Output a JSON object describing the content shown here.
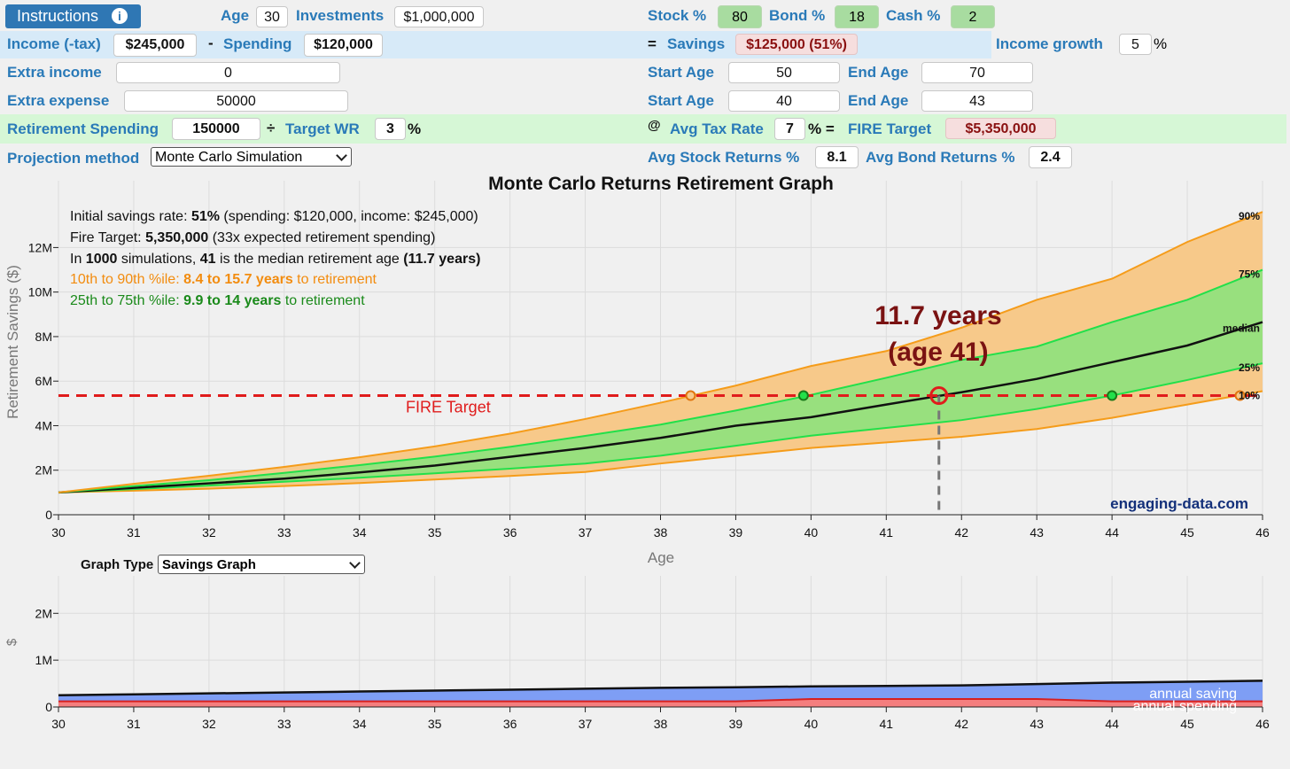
{
  "controls": {
    "instructions_label": "Instructions",
    "age_label": "Age",
    "age_value": "30",
    "investments_label": "Investments",
    "investments_value": "$1,000,000",
    "stock_label": "Stock %",
    "stock_value": "80",
    "bond_label": "Bond %",
    "bond_value": "18",
    "cash_label": "Cash %",
    "cash_value": "2",
    "income_label": "Income (-tax)",
    "income_value": "$245,000",
    "minus_sign": "-",
    "spending_label": "Spending",
    "spending_value": "$120,000",
    "equals_sign": "=",
    "savings_label": "Savings",
    "savings_value": "$125,000 (51%)",
    "income_growth_label": "Income growth",
    "income_growth_value": "5",
    "income_growth_unit": "%",
    "extra_income_label": "Extra income",
    "extra_income_value": "0",
    "extra_income_start_label": "Start Age",
    "extra_income_start_value": "50",
    "extra_income_end_label": "End Age",
    "extra_income_end_value": "70",
    "extra_expense_label": "Extra expense",
    "extra_expense_value": "50000",
    "extra_expense_start_label": "Start Age",
    "extra_expense_start_value": "40",
    "extra_expense_end_label": "End Age",
    "extra_expense_end_value": "43",
    "retirement_spending_label": "Retirement Spending",
    "retirement_spending_value": "150000",
    "divide_sign": "÷",
    "target_wr_label": "Target WR",
    "target_wr_value": "3",
    "target_wr_unit": "%",
    "at_sign": "@",
    "tax_rate_label": "Avg Tax Rate",
    "tax_rate_value": "7",
    "tax_rate_unit": "% =",
    "fire_target_label": "FIRE Target",
    "fire_target_value": "$5,350,000",
    "projection_label": "Projection method",
    "projection_value": "Monte Carlo Simulation",
    "avg_stock_label": "Avg Stock Returns %",
    "avg_stock_value": "8.1",
    "avg_bond_label": "Avg Bond Returns %",
    "avg_bond_value": "2.4"
  },
  "info": {
    "line1_a": "Initial savings rate: ",
    "line1_b": "51%",
    "line1_c": " (spending: $120,000, income: $245,000)",
    "line2_a": "Fire Target: ",
    "line2_b": "5,350,000",
    "line2_c": " (33x expected retirement spending)",
    "line3_a": "In ",
    "line3_b": "1000",
    "line3_c": " simulations, ",
    "line3_d": "41",
    "line3_e": " is the median retirement age ",
    "line3_f": "(11.7 years)",
    "line4_a": "10th to 90th %ile: ",
    "line4_b": "8.4 to 15.7 years",
    "line4_c": " to retirement",
    "line5_a": "25th to 75th %ile: ",
    "line5_b": "9.9 to 14 years",
    "line5_c": " to retirement"
  },
  "annotation": {
    "line1": "11.7 years",
    "line2": "(age 41)"
  },
  "watermark": "engaging-data.com",
  "graph_type_label": "Graph Type",
  "graph_type_value": "Savings Graph",
  "colors": {
    "outer_band": "#f7c98a",
    "outer_line": "#f59c1a",
    "inner_band": "#98e07e",
    "inner_line": "#22e04a",
    "median": "#111111",
    "fire": "#e01c1c",
    "saving": "#7e9ef5",
    "spending": "#f47e7e"
  },
  "chart_data": [
    {
      "type": "area",
      "title": "Monte Carlo Returns Retirement Graph",
      "xlabel": "Age",
      "ylabel": "Retirement Savings ($)",
      "x": [
        30,
        31,
        32,
        33,
        34,
        35,
        36,
        37,
        38,
        39,
        40,
        41,
        42,
        43,
        44,
        45,
        46
      ],
      "xlim": [
        30,
        46
      ],
      "ylim": [
        0,
        15000000
      ],
      "yticks": [
        0,
        2000000,
        4000000,
        6000000,
        8000000,
        10000000,
        12000000
      ],
      "ytick_labels": [
        "0",
        "2M",
        "4M",
        "6M",
        "8M",
        "10M",
        "12M"
      ],
      "series": [
        {
          "name": "10%",
          "values": [
            1000000,
            1080000,
            1170000,
            1290000,
            1420000,
            1580000,
            1740000,
            1920000,
            2300000,
            2650000,
            3000000,
            3250000,
            3500000,
            3850000,
            4350000,
            4950000,
            5550000
          ]
        },
        {
          "name": "25%",
          "values": [
            1000000,
            1150000,
            1310000,
            1480000,
            1660000,
            1860000,
            2070000,
            2300000,
            2650000,
            3100000,
            3550000,
            3900000,
            4250000,
            4750000,
            5350000,
            6050000,
            6800000
          ]
        },
        {
          "name": "median",
          "values": [
            1000000,
            1210000,
            1410000,
            1620000,
            1900000,
            2210000,
            2600000,
            3000000,
            3450000,
            4000000,
            4380000,
            4950000,
            5500000,
            6100000,
            6850000,
            7600000,
            8650000
          ]
        },
        {
          "name": "75%",
          "values": [
            1000000,
            1290000,
            1550000,
            1880000,
            2230000,
            2610000,
            3050000,
            3540000,
            4050000,
            4680000,
            5380000,
            6150000,
            6950000,
            7550000,
            8650000,
            9650000,
            11000000
          ]
        },
        {
          "name": "90%",
          "values": [
            1000000,
            1390000,
            1750000,
            2150000,
            2580000,
            3070000,
            3640000,
            4300000,
            5030000,
            5800000,
            6680000,
            7350000,
            8400000,
            9650000,
            10600000,
            12250000,
            13600000
          ]
        }
      ],
      "percentile_labels": [
        "90%",
        "75%",
        "median",
        "25%",
        "10%"
      ],
      "fire_target": 5350000,
      "fire_label": "FIRE Target",
      "retirement_markers": [
        {
          "label": "10th",
          "age": 38.4
        },
        {
          "label": "25th",
          "age": 39.9
        },
        {
          "label": "median",
          "age": 41.7
        },
        {
          "label": "75th",
          "age": 44.0
        },
        {
          "label": "90th",
          "age": 45.7
        }
      ],
      "legend": "none"
    },
    {
      "type": "area",
      "title": "Savings Graph",
      "xlabel": "",
      "ylabel": "$",
      "x": [
        30,
        31,
        32,
        33,
        34,
        35,
        36,
        37,
        38,
        39,
        40,
        41,
        42,
        43,
        44,
        45,
        46
      ],
      "xlim": [
        30,
        46
      ],
      "ylim": [
        0,
        2800000
      ],
      "yticks": [
        0,
        1000000,
        2000000
      ],
      "ytick_labels": [
        "0",
        "1M",
        "2M"
      ],
      "series": [
        {
          "name": "annual saving",
          "values": [
            250000,
            270000,
            290000,
            310000,
            330000,
            350000,
            370000,
            390000,
            410000,
            420000,
            440000,
            450000,
            460000,
            490000,
            520000,
            540000,
            560000
          ]
        },
        {
          "name": "annual spending",
          "values": [
            120000,
            120000,
            120000,
            120000,
            120000,
            120000,
            120000,
            120000,
            120000,
            120000,
            170000,
            170000,
            170000,
            170000,
            120000,
            120000,
            120000
          ]
        }
      ],
      "series_labels": [
        "annual saving",
        "annual spending"
      ]
    }
  ]
}
